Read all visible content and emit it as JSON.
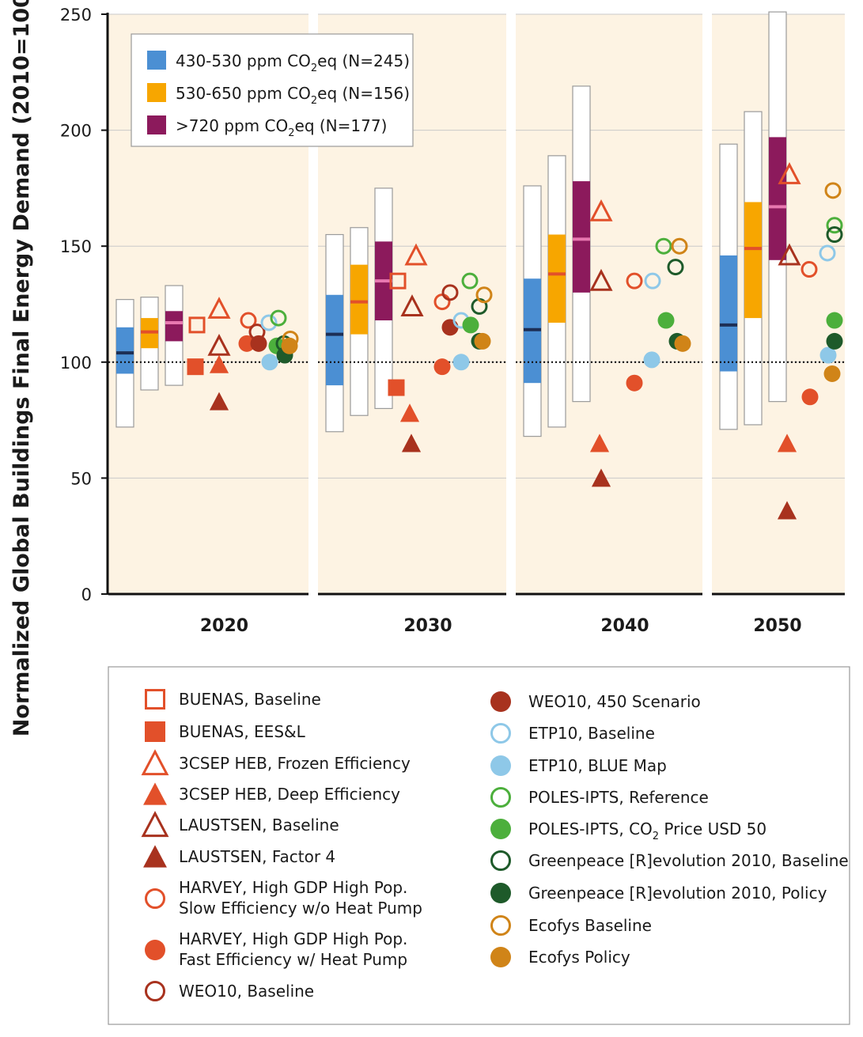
{
  "chart_data": {
    "type": "boxplot-scatter",
    "ylabel": "Normalized Global Buildings Final Energy Demand (2010=100)",
    "ylim": [
      0,
      250
    ],
    "yticks": [
      0,
      50,
      100,
      150,
      200,
      250
    ],
    "reference_line": 100,
    "periods": [
      "2020",
      "2030",
      "2040",
      "2050"
    ],
    "range_legend": [
      {
        "key": "c1",
        "pre": "430-530 ppm CO",
        "sub": "2",
        "post": "eq (N=245)",
        "color": "#4b8fd3",
        "median_color": "#1d2f55"
      },
      {
        "key": "c2",
        "pre": "530-650 ppm CO",
        "sub": "2",
        "post": "eq (N=156)",
        "color": "#f7a600",
        "median_color": "#e2502a"
      },
      {
        "key": "c3",
        "pre": ">720 ppm CO",
        "sub": "2",
        "post": "eq (N=177)",
        "color": "#8c1a5c",
        "median_color": "#e878b0"
      }
    ],
    "ranges": [
      {
        "period": "2020",
        "category": "c1",
        "min": 72,
        "q1": 95,
        "median": 104,
        "q3": 115,
        "max": 127
      },
      {
        "period": "2020",
        "category": "c2",
        "min": 88,
        "q1": 106,
        "median": 113,
        "q3": 119,
        "max": 128
      },
      {
        "period": "2020",
        "category": "c3",
        "min": 90,
        "q1": 109,
        "median": 117,
        "q3": 122,
        "max": 133
      },
      {
        "period": "2030",
        "category": "c1",
        "min": 70,
        "q1": 90,
        "median": 112,
        "q3": 129,
        "max": 155
      },
      {
        "period": "2030",
        "category": "c2",
        "min": 77,
        "q1": 112,
        "median": 126,
        "q3": 142,
        "max": 158
      },
      {
        "period": "2030",
        "category": "c3",
        "min": 80,
        "q1": 118,
        "median": 135,
        "q3": 152,
        "max": 175
      },
      {
        "period": "2040",
        "category": "c1",
        "min": 68,
        "q1": 91,
        "median": 114,
        "q3": 136,
        "max": 176
      },
      {
        "period": "2040",
        "category": "c2",
        "min": 72,
        "q1": 117,
        "median": 138,
        "q3": 155,
        "max": 189
      },
      {
        "period": "2040",
        "category": "c3",
        "min": 83,
        "q1": 130,
        "median": 153,
        "q3": 178,
        "max": 219
      },
      {
        "period": "2050",
        "category": "c1",
        "min": 71,
        "q1": 96,
        "median": 116,
        "q3": 146,
        "max": 194
      },
      {
        "period": "2050",
        "category": "c2",
        "min": 73,
        "q1": 119,
        "median": 149,
        "q3": 169,
        "max": 208
      },
      {
        "period": "2050",
        "category": "c3",
        "min": 83,
        "q1": 144,
        "median": 167,
        "q3": 197,
        "max": 251
      }
    ],
    "scenarios": [
      {
        "key": "buenas_base",
        "label": "BUENAS, Baseline",
        "shape": "square",
        "filled": false,
        "color": "#e2502a"
      },
      {
        "key": "buenas_eesl",
        "label": "BUENAS, EES&L",
        "shape": "square",
        "filled": true,
        "color": "#e2502a"
      },
      {
        "key": "csep_frozen",
        "label": "3CSEP HEB, Frozen Efficiency",
        "shape": "triangle",
        "filled": false,
        "color": "#e2502a"
      },
      {
        "key": "csep_deep",
        "label": "3CSEP HEB, Deep Efficiency",
        "shape": "triangle",
        "filled": true,
        "color": "#e2502a"
      },
      {
        "key": "laus_base",
        "label": "LAUSTSEN, Baseline",
        "shape": "triangle",
        "filled": false,
        "color": "#a8321e"
      },
      {
        "key": "laus_f4",
        "label": "LAUSTSEN, Factor 4",
        "shape": "triangle",
        "filled": true,
        "color": "#a8321e"
      },
      {
        "key": "harvey_slow",
        "label": "HARVEY, High GDP High Pop. Slow Efficiency w/o Heat Pump",
        "lines": [
          "HARVEY, High GDP High Pop.",
          "Slow Efficiency w/o Heat Pump"
        ],
        "shape": "circle",
        "filled": false,
        "color": "#e2502a"
      },
      {
        "key": "harvey_fast",
        "label": "HARVEY, High GDP High Pop. Fast Efficiency w/ Heat Pump",
        "lines": [
          "HARVEY, High GDP High Pop.",
          "Fast Efficiency w/ Heat Pump"
        ],
        "shape": "circle",
        "filled": true,
        "color": "#e2502a"
      },
      {
        "key": "weo_base",
        "label": "WEO10, Baseline",
        "shape": "circle",
        "filled": false,
        "color": "#a8321e"
      },
      {
        "key": "weo_450",
        "label": "WEO10, 450 Scenario",
        "shape": "circle",
        "filled": true,
        "color": "#a8321e"
      },
      {
        "key": "etp_base",
        "label": "ETP10, Baseline",
        "shape": "circle",
        "filled": false,
        "color": "#8ec8e8"
      },
      {
        "key": "etp_blue",
        "label": "ETP10, BLUE Map",
        "shape": "circle",
        "filled": true,
        "color": "#8ec8e8"
      },
      {
        "key": "poles_ref",
        "label": "POLES-IPTS, Reference",
        "shape": "circle",
        "filled": false,
        "color": "#4caf3c"
      },
      {
        "key": "poles_co2",
        "label": "POLES-IPTS, CO2 Price USD 50",
        "pre": "POLES-IPTS, CO",
        "sub": "2",
        "post": " Price USD 50",
        "shape": "circle",
        "filled": true,
        "color": "#4caf3c"
      },
      {
        "key": "gp_base",
        "label": "Greenpeace [R]evolution 2010, Baseline",
        "shape": "circle",
        "filled": false,
        "color": "#1e5a2a"
      },
      {
        "key": "gp_policy",
        "label": "Greenpeace [R]evolution 2010, Policy",
        "shape": "circle",
        "filled": true,
        "color": "#1e5a2a"
      },
      {
        "key": "eco_base",
        "label": "Ecofys Baseline",
        "shape": "circle",
        "filled": false,
        "color": "#d08418"
      },
      {
        "key": "eco_policy",
        "label": "Ecofys Policy",
        "shape": "circle",
        "filled": true,
        "color": "#d08418"
      }
    ],
    "points": [
      {
        "scenario": "buenas_base",
        "period": "2020",
        "value": 116
      },
      {
        "scenario": "buenas_eesl",
        "period": "2020",
        "value": 98
      },
      {
        "scenario": "csep_frozen",
        "period": "2020",
        "value": 123
      },
      {
        "scenario": "csep_deep",
        "period": "2020",
        "value": 99
      },
      {
        "scenario": "laus_base",
        "period": "2020",
        "value": 107
      },
      {
        "scenario": "laus_f4",
        "period": "2020",
        "value": 83
      },
      {
        "scenario": "harvey_slow",
        "period": "2020",
        "value": 118
      },
      {
        "scenario": "harvey_fast",
        "period": "2020",
        "value": 108
      },
      {
        "scenario": "weo_base",
        "period": "2020",
        "value": 113
      },
      {
        "scenario": "weo_450",
        "period": "2020",
        "value": 108
      },
      {
        "scenario": "etp_base",
        "period": "2020",
        "value": 117
      },
      {
        "scenario": "etp_blue",
        "period": "2020",
        "value": 100
      },
      {
        "scenario": "poles_ref",
        "period": "2020",
        "value": 119
      },
      {
        "scenario": "poles_co2",
        "period": "2020",
        "value": 107
      },
      {
        "scenario": "gp_base",
        "period": "2020",
        "value": 108
      },
      {
        "scenario": "gp_policy",
        "period": "2020",
        "value": 103
      },
      {
        "scenario": "eco_base",
        "period": "2020",
        "value": 110
      },
      {
        "scenario": "eco_policy",
        "period": "2020",
        "value": 107
      },
      {
        "scenario": "buenas_base",
        "period": "2030",
        "value": 135
      },
      {
        "scenario": "buenas_eesl",
        "period": "2030",
        "value": 89
      },
      {
        "scenario": "csep_frozen",
        "period": "2030",
        "value": 146
      },
      {
        "scenario": "csep_deep",
        "period": "2030",
        "value": 78
      },
      {
        "scenario": "laus_base",
        "period": "2030",
        "value": 124
      },
      {
        "scenario": "laus_f4",
        "period": "2030",
        "value": 65
      },
      {
        "scenario": "harvey_slow",
        "period": "2030",
        "value": 126
      },
      {
        "scenario": "harvey_fast",
        "period": "2030",
        "value": 98
      },
      {
        "scenario": "weo_base",
        "period": "2030",
        "value": 130
      },
      {
        "scenario": "weo_450",
        "period": "2030",
        "value": 115
      },
      {
        "scenario": "etp_base",
        "period": "2030",
        "value": 118
      },
      {
        "scenario": "etp_blue",
        "period": "2030",
        "value": 100
      },
      {
        "scenario": "poles_ref",
        "period": "2030",
        "value": 135
      },
      {
        "scenario": "poles_co2",
        "period": "2030",
        "value": 116
      },
      {
        "scenario": "gp_base",
        "period": "2030",
        "value": 124
      },
      {
        "scenario": "gp_policy",
        "period": "2030",
        "value": 109
      },
      {
        "scenario": "eco_base",
        "period": "2030",
        "value": 129
      },
      {
        "scenario": "eco_policy",
        "period": "2030",
        "value": 109
      },
      {
        "scenario": "csep_frozen",
        "period": "2040",
        "value": 165
      },
      {
        "scenario": "csep_deep",
        "period": "2040",
        "value": 65
      },
      {
        "scenario": "laus_base",
        "period": "2040",
        "value": 135
      },
      {
        "scenario": "laus_f4",
        "period": "2040",
        "value": 50
      },
      {
        "scenario": "harvey_slow",
        "period": "2040",
        "value": 135
      },
      {
        "scenario": "harvey_fast",
        "period": "2040",
        "value": 91
      },
      {
        "scenario": "etp_base",
        "period": "2040",
        "value": 135
      },
      {
        "scenario": "etp_blue",
        "period": "2040",
        "value": 101
      },
      {
        "scenario": "poles_ref",
        "period": "2040",
        "value": 150
      },
      {
        "scenario": "poles_co2",
        "period": "2040",
        "value": 118
      },
      {
        "scenario": "gp_base",
        "period": "2040",
        "value": 141
      },
      {
        "scenario": "gp_policy",
        "period": "2040",
        "value": 109
      },
      {
        "scenario": "eco_base",
        "period": "2040",
        "value": 150
      },
      {
        "scenario": "eco_policy",
        "period": "2040",
        "value": 108
      },
      {
        "scenario": "csep_frozen",
        "period": "2050",
        "value": 181
      },
      {
        "scenario": "csep_deep",
        "period": "2050",
        "value": 65
      },
      {
        "scenario": "laus_base",
        "period": "2050",
        "value": 146
      },
      {
        "scenario": "laus_f4",
        "period": "2050",
        "value": 36
      },
      {
        "scenario": "harvey_slow",
        "period": "2050",
        "value": 140
      },
      {
        "scenario": "harvey_fast",
        "period": "2050",
        "value": 85
      },
      {
        "scenario": "etp_base",
        "period": "2050",
        "value": 147
      },
      {
        "scenario": "etp_blue",
        "period": "2050",
        "value": 103
      },
      {
        "scenario": "poles_ref",
        "period": "2050",
        "value": 159
      },
      {
        "scenario": "poles_co2",
        "period": "2050",
        "value": 118
      },
      {
        "scenario": "gp_base",
        "period": "2050",
        "value": 155
      },
      {
        "scenario": "gp_policy",
        "period": "2050",
        "value": 109
      },
      {
        "scenario": "eco_base",
        "period": "2050",
        "value": 174
      },
      {
        "scenario": "eco_policy",
        "period": "2050",
        "value": 95
      }
    ]
  }
}
